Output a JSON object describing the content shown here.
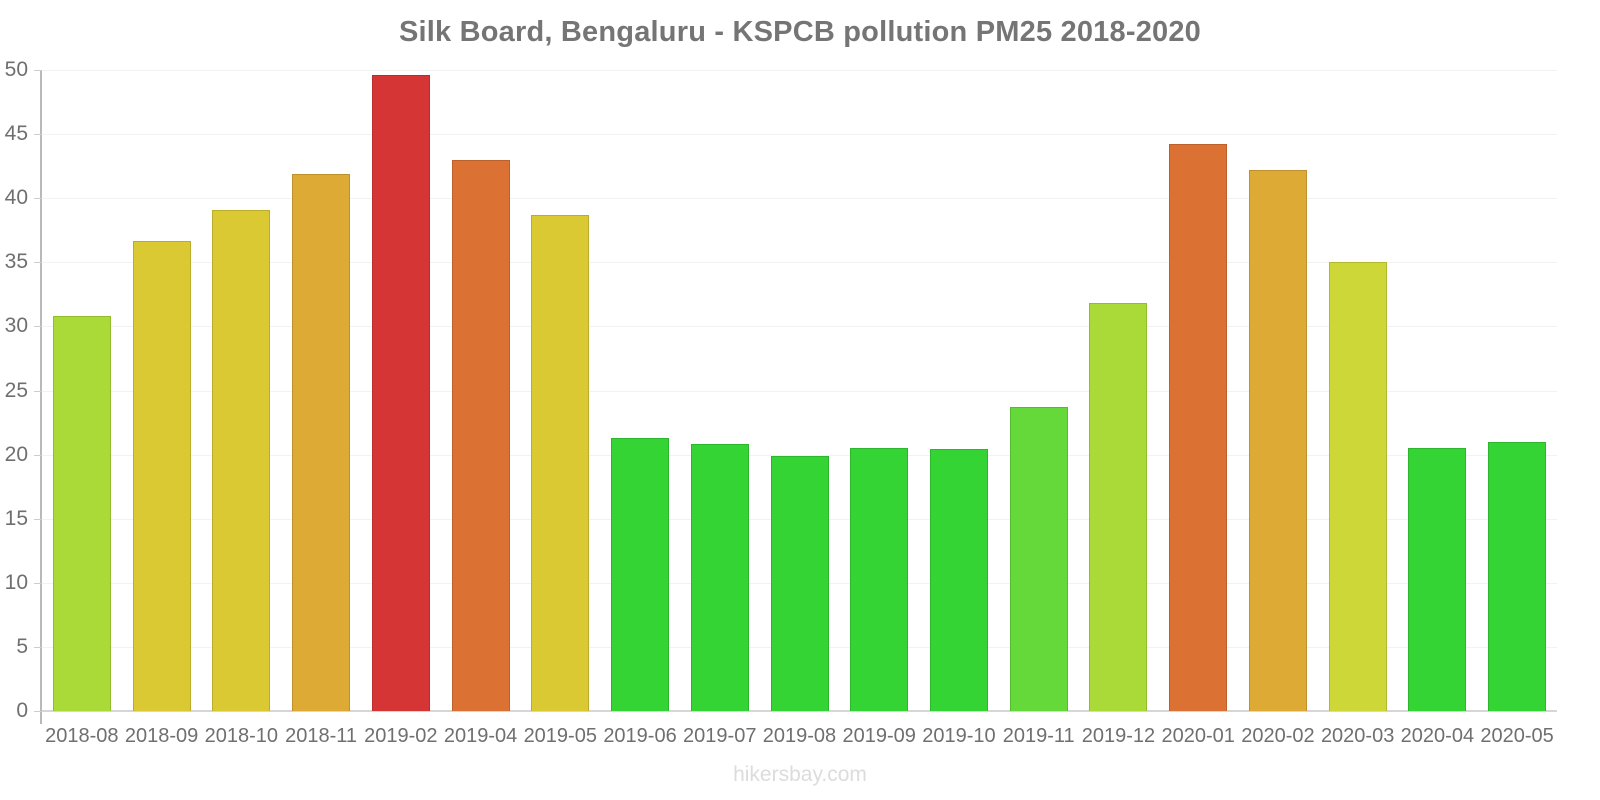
{
  "header": {
    "title": "Silk Board, Bengaluru - KSPCB pollution PM25 2018-2020"
  },
  "footer": {
    "watermark": "hikersbay.com"
  },
  "chart_data": {
    "type": "bar",
    "title": "Silk Board, Bengaluru - KSPCB pollution PM25 2018-2020",
    "xlabel": "",
    "ylabel": "",
    "legend": "none",
    "grid": "faint horizontal gridlines every 5 units",
    "ylim": [
      0,
      50
    ],
    "yticks": [
      0,
      5,
      10,
      15,
      20,
      25,
      30,
      35,
      40,
      45,
      50
    ],
    "categories": [
      "2018-08",
      "2018-09",
      "2018-10",
      "2018-11",
      "2019-02",
      "2019-04",
      "2019-05",
      "2019-06",
      "2019-07",
      "2019-08",
      "2019-09",
      "2019-10",
      "2019-11",
      "2019-12",
      "2020-01",
      "2020-02",
      "2020-03",
      "2020-04",
      "2020-05"
    ],
    "values": [
      30.8,
      36.7,
      39.1,
      41.9,
      49.6,
      43.0,
      38.7,
      21.3,
      20.8,
      19.9,
      20.5,
      20.4,
      23.7,
      31.8,
      44.2,
      42.2,
      35.0,
      20.5,
      21.0
    ],
    "bar_colors": [
      "#aada38",
      "#dbc934",
      "#dbc934",
      "#ddab35",
      "#d53635",
      "#db7233",
      "#dbc934",
      "#35d435",
      "#35d435",
      "#35d435",
      "#35d435",
      "#35d435",
      "#66d93a",
      "#aada38",
      "#db7233",
      "#ddab35",
      "#cdd838",
      "#35d435",
      "#35d435"
    ],
    "palette": {
      "green": "#35d435",
      "light_green": "#66d93a",
      "yellow_green": "#aada38",
      "yellow": "#dbc934",
      "green_yellow": "#cdd838",
      "orange_yellow": "#ddab35",
      "orange": "#db7233",
      "red": "#d53635"
    },
    "axis_colors": {
      "y_axis_line": "#b9b9b9",
      "x_axis_line": "#d6d6d6",
      "gridline": "#f2f2f2",
      "tick": "#cccccc",
      "label": "#6f6f6f",
      "title": "#757575",
      "watermark": "#dcdcdc"
    }
  }
}
